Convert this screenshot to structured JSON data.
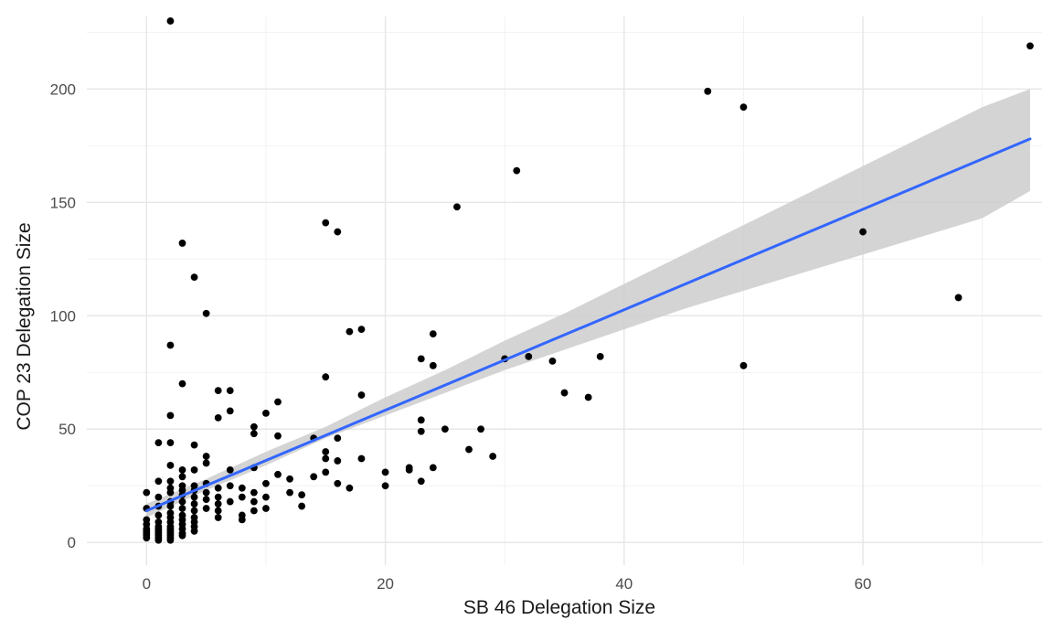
{
  "chart_data": {
    "type": "scatter",
    "title": "",
    "xlabel": "SB 46 Delegation Size",
    "ylabel": "COP 23 Delegation Size",
    "xlim": [
      -5,
      75
    ],
    "ylim": [
      -10,
      232
    ],
    "x_ticks": [
      0,
      20,
      40,
      60
    ],
    "y_ticks": [
      0,
      50,
      100,
      150,
      200
    ],
    "x_tick_labels": [
      "0",
      "20",
      "40",
      "60"
    ],
    "y_tick_labels": [
      "0",
      "50",
      "100",
      "150",
      "200"
    ],
    "x_minor_ticks": [
      10,
      30,
      50,
      70
    ],
    "y_minor_ticks": [
      25,
      75,
      125,
      175,
      225
    ],
    "grid": true,
    "legend": "none",
    "colors": {
      "points": "#000000",
      "trend_line": "#3366ff",
      "confidence_band": "#cccccc",
      "grid": "#e6e6e6"
    },
    "points": [
      [
        2,
        230
      ],
      [
        74,
        219
      ],
      [
        47,
        199
      ],
      [
        50,
        192
      ],
      [
        31,
        164
      ],
      [
        26,
        148
      ],
      [
        15,
        141
      ],
      [
        16,
        137
      ],
      [
        60,
        137
      ],
      [
        3,
        132
      ],
      [
        4,
        117
      ],
      [
        68,
        108
      ],
      [
        5,
        101
      ],
      [
        18,
        94
      ],
      [
        17,
        93
      ],
      [
        24,
        92
      ],
      [
        2,
        87
      ],
      [
        30,
        81
      ],
      [
        23,
        81
      ],
      [
        32,
        82
      ],
      [
        34,
        80
      ],
      [
        38,
        82
      ],
      [
        24,
        78
      ],
      [
        50,
        78
      ],
      [
        15,
        73
      ],
      [
        3,
        70
      ],
      [
        6,
        67
      ],
      [
        7,
        67
      ],
      [
        35,
        66
      ],
      [
        18,
        65
      ],
      [
        37,
        64
      ],
      [
        11,
        62
      ],
      [
        7,
        58
      ],
      [
        10,
        57
      ],
      [
        2,
        56
      ],
      [
        6,
        55
      ],
      [
        23,
        54
      ],
      [
        9,
        51
      ],
      [
        25,
        50
      ],
      [
        28,
        50
      ],
      [
        23,
        49
      ],
      [
        9,
        48
      ],
      [
        11,
        47
      ],
      [
        14,
        46
      ],
      [
        16,
        46
      ],
      [
        1,
        44
      ],
      [
        2,
        44
      ],
      [
        4,
        43
      ],
      [
        27,
        41
      ],
      [
        15,
        40
      ],
      [
        29,
        38
      ],
      [
        5,
        38
      ],
      [
        15,
        37
      ],
      [
        18,
        37
      ],
      [
        16,
        36
      ],
      [
        5,
        35
      ],
      [
        2,
        34
      ],
      [
        24,
        33
      ],
      [
        9,
        33
      ],
      [
        22,
        33
      ],
      [
        22,
        32
      ],
      [
        3,
        32
      ],
      [
        4,
        32
      ],
      [
        7,
        32
      ],
      [
        20,
        31
      ],
      [
        15,
        31
      ],
      [
        11,
        30
      ],
      [
        14,
        29
      ],
      [
        3,
        29
      ],
      [
        12,
        28
      ],
      [
        23,
        27
      ],
      [
        1,
        27
      ],
      [
        2,
        27
      ],
      [
        16,
        26
      ],
      [
        5,
        26
      ],
      [
        10,
        26
      ],
      [
        3,
        25
      ],
      [
        20,
        25
      ],
      [
        4,
        25
      ],
      [
        7,
        25
      ],
      [
        17,
        24
      ],
      [
        6,
        24
      ],
      [
        8,
        24
      ],
      [
        2,
        24
      ],
      [
        3,
        23
      ],
      [
        4,
        23
      ],
      [
        12,
        22
      ],
      [
        9,
        22
      ],
      [
        5,
        22
      ],
      [
        13,
        21
      ],
      [
        0,
        22
      ],
      [
        2,
        22
      ],
      [
        3,
        21
      ],
      [
        1,
        20
      ],
      [
        4,
        20
      ],
      [
        6,
        20
      ],
      [
        8,
        20
      ],
      [
        10,
        20
      ],
      [
        5,
        19
      ],
      [
        7,
        18
      ],
      [
        2,
        18
      ],
      [
        3,
        18
      ],
      [
        9,
        18
      ],
      [
        4,
        17
      ],
      [
        6,
        17
      ],
      [
        13,
        16
      ],
      [
        0,
        15
      ],
      [
        1,
        16
      ],
      [
        2,
        16
      ],
      [
        3,
        15
      ],
      [
        5,
        15
      ],
      [
        10,
        15
      ],
      [
        9,
        14
      ],
      [
        4,
        14
      ],
      [
        6,
        14
      ],
      [
        2,
        13
      ],
      [
        3,
        12
      ],
      [
        8,
        12
      ],
      [
        1,
        12
      ],
      [
        2,
        11
      ],
      [
        4,
        11
      ],
      [
        6,
        11
      ],
      [
        0,
        10
      ],
      [
        3,
        10
      ],
      [
        8,
        10
      ],
      [
        1,
        9
      ],
      [
        2,
        9
      ],
      [
        4,
        9
      ],
      [
        0,
        8
      ],
      [
        3,
        8
      ],
      [
        1,
        7
      ],
      [
        2,
        7
      ],
      [
        4,
        7
      ],
      [
        0,
        6
      ],
      [
        2,
        6
      ],
      [
        3,
        6
      ],
      [
        1,
        5
      ],
      [
        2,
        5
      ],
      [
        4,
        5
      ],
      [
        0,
        4
      ],
      [
        1,
        4
      ],
      [
        2,
        4
      ],
      [
        3,
        4
      ],
      [
        0,
        3
      ],
      [
        1,
        3
      ],
      [
        2,
        3
      ],
      [
        0,
        2
      ],
      [
        1,
        2
      ],
      [
        2,
        2
      ],
      [
        1,
        1
      ],
      [
        2,
        1
      ],
      [
        0,
        5
      ],
      [
        1,
        6
      ],
      [
        3,
        3
      ]
    ],
    "trend_line": {
      "x": [
        0,
        74
      ],
      "y": [
        14,
        178
      ]
    },
    "confidence_band": {
      "x": [
        0,
        5,
        10,
        15,
        20,
        25,
        30,
        35,
        40,
        45,
        50,
        55,
        60,
        65,
        70,
        74
      ],
      "lower": [
        11,
        23,
        34,
        46,
        56,
        66,
        76,
        85,
        94,
        103,
        111,
        119,
        127,
        135,
        143,
        155
      ],
      "upper": [
        17,
        28,
        40,
        51,
        64,
        76,
        89,
        101,
        114,
        127,
        140,
        153,
        166,
        179,
        192,
        200
      ]
    }
  }
}
